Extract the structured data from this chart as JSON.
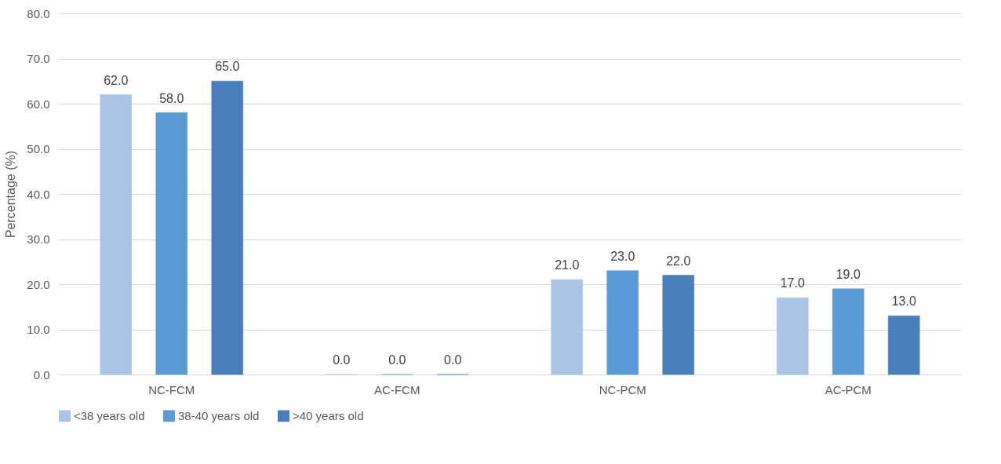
{
  "chart_data": {
    "type": "bar",
    "ylabel": "Percentage (%)",
    "categories": [
      "NC-FCM",
      "AC-FCM",
      "NC-PCM",
      "AC-PCM"
    ],
    "series": [
      {
        "name": "<38 years old",
        "color": "#a9c4e4",
        "values": [
          62,
          0,
          21,
          17
        ],
        "value_labels": [
          "62.0",
          "0.0",
          "21.0",
          "17.0"
        ]
      },
      {
        "name": "38-40 years old",
        "color": "#5b9bd5",
        "values": [
          58,
          0,
          23,
          19
        ],
        "value_labels": [
          "58.0",
          "0.0",
          "23.0",
          "19.0"
        ]
      },
      {
        "name": ">40 years old",
        "color": "#4a7ebb",
        "values": [
          65,
          0,
          22,
          13
        ],
        "value_labels": [
          "65.0",
          "0.0",
          "22.0",
          "13.0"
        ]
      }
    ],
    "ylim": [
      0,
      80
    ],
    "yticks": [
      {
        "value": 0,
        "label": "0.0"
      },
      {
        "value": 10,
        "label": "10.0"
      },
      {
        "value": 20,
        "label": "20.0"
      },
      {
        "value": 30,
        "label": "30.0"
      },
      {
        "value": 40,
        "label": "40.0"
      },
      {
        "value": 50,
        "label": "50.0"
      },
      {
        "value": 60,
        "label": "60.0"
      },
      {
        "value": 70,
        "label": "70.0"
      },
      {
        "value": 80,
        "label": "80.0"
      }
    ],
    "grid": "y",
    "legend": "bottom"
  }
}
